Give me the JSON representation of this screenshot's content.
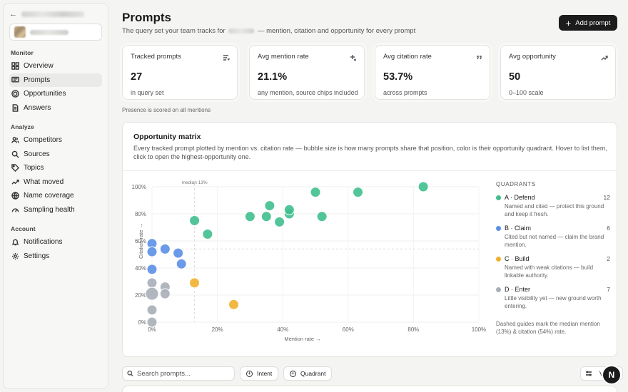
{
  "sidebar": {
    "sections": [
      {
        "title": "Monitor",
        "items": [
          {
            "label": "Overview",
            "icon": "grid-icon",
            "active": false
          },
          {
            "label": "Prompts",
            "icon": "message-icon",
            "active": true
          },
          {
            "label": "Opportunities",
            "icon": "target-icon",
            "active": false
          },
          {
            "label": "Answers",
            "icon": "document-icon",
            "active": false
          }
        ]
      },
      {
        "title": "Analyze",
        "items": [
          {
            "label": "Competitors",
            "icon": "users-icon",
            "active": false
          },
          {
            "label": "Sources",
            "icon": "search-icon",
            "active": false
          },
          {
            "label": "Topics",
            "icon": "tag-icon",
            "active": false
          },
          {
            "label": "What moved",
            "icon": "trend-icon",
            "active": false
          },
          {
            "label": "Name coverage",
            "icon": "globe-icon",
            "active": false
          },
          {
            "label": "Sampling health",
            "icon": "gauge-icon",
            "active": false
          }
        ]
      },
      {
        "title": "Account",
        "items": [
          {
            "label": "Notifications",
            "icon": "bell-icon",
            "active": false
          },
          {
            "label": "Settings",
            "icon": "gear-icon",
            "active": false
          }
        ]
      }
    ]
  },
  "header": {
    "title": "Prompts",
    "subtitle_before": "The query set your team tracks for",
    "subtitle_after": "— mention, citation and opportunity for every prompt",
    "add_label": "Add prompt"
  },
  "stats": [
    {
      "label": "Tracked prompts",
      "value": "27",
      "note": "in query set",
      "icon": "list-icon"
    },
    {
      "label": "Avg mention rate",
      "value": "21.1%",
      "note": "any mention, source chips included",
      "icon": "sparkle-icon"
    },
    {
      "label": "Avg citation rate",
      "value": "53.7%",
      "note": "across prompts",
      "icon": "quote-icon"
    },
    {
      "label": "Avg opportunity",
      "value": "50",
      "note": "0–100 scale",
      "icon": "trend-up-icon"
    }
  ],
  "presence_note": "Presence is scored on all mentions",
  "matrix": {
    "title": "Opportunity matrix",
    "description": "Every tracked prompt plotted by mention vs. citation rate — bubble size is how many prompts share that position, color is their opportunity quadrant. Hover to list them, click to open the highest-opportunity one.",
    "quadrants_title": "QUADRANTS",
    "quadrants": [
      {
        "name": "A · Defend",
        "count": "12",
        "desc": "Named and cited — protect this ground and keep it fresh.",
        "color": "#3fbf8e"
      },
      {
        "name": "B · Claim",
        "count": "6",
        "desc": "Cited but not named — claim the brand mention.",
        "color": "#5b8fe6"
      },
      {
        "name": "C · Build",
        "count": "2",
        "desc": "Named with weak citations — build linkable authority.",
        "color": "#f0b12e"
      },
      {
        "name": "D · Enter",
        "count": "7",
        "desc": "Little visibility yet — new ground worth entering.",
        "color": "#a9aeb8"
      }
    ],
    "footnote": "Dashed guides mark the median mention (13%) & citation (54%) rate."
  },
  "chart_data": {
    "type": "scatter",
    "xlabel": "Mention rate →",
    "ylabel": "Citation rate →",
    "xlim": [
      0,
      100
    ],
    "ylim": [
      0,
      100
    ],
    "x_ticks": [
      "0%",
      "20%",
      "40%",
      "60%",
      "80%",
      "100%"
    ],
    "y_ticks": [
      "0%",
      "20%",
      "40%",
      "60%",
      "80%",
      "100%"
    ],
    "median_x": 13,
    "median_y": 54,
    "median_label": "median 13%",
    "series": [
      {
        "name": "A · Defend",
        "color": "#3fbf8e",
        "points": [
          {
            "x": 13,
            "y": 75,
            "n": 1
          },
          {
            "x": 17,
            "y": 65,
            "n": 1
          },
          {
            "x": 30,
            "y": 78,
            "n": 1
          },
          {
            "x": 35,
            "y": 78,
            "n": 1
          },
          {
            "x": 36,
            "y": 86,
            "n": 1
          },
          {
            "x": 39,
            "y": 74,
            "n": 1
          },
          {
            "x": 42,
            "y": 80,
            "n": 1
          },
          {
            "x": 42,
            "y": 83,
            "n": 1
          },
          {
            "x": 50,
            "y": 96,
            "n": 1
          },
          {
            "x": 52,
            "y": 78,
            "n": 1
          },
          {
            "x": 63,
            "y": 96,
            "n": 1
          },
          {
            "x": 83,
            "y": 100,
            "n": 1
          }
        ]
      },
      {
        "name": "B · Claim",
        "color": "#5b8fe6",
        "points": [
          {
            "x": 0,
            "y": 58,
            "n": 1
          },
          {
            "x": 4,
            "y": 54,
            "n": 1
          },
          {
            "x": 8,
            "y": 51,
            "n": 1
          },
          {
            "x": 0,
            "y": 52,
            "n": 1
          },
          {
            "x": 9,
            "y": 43,
            "n": 1
          },
          {
            "x": 0,
            "y": 39,
            "n": 1
          }
        ]
      },
      {
        "name": "C · Build",
        "color": "#f0b12e",
        "points": [
          {
            "x": 13,
            "y": 29,
            "n": 1
          },
          {
            "x": 25,
            "y": 13,
            "n": 1
          }
        ]
      },
      {
        "name": "D · Enter",
        "color": "#a9aeb8",
        "points": [
          {
            "x": 0,
            "y": 29,
            "n": 1
          },
          {
            "x": 4,
            "y": 26,
            "n": 1
          },
          {
            "x": 0,
            "y": 21,
            "n": 2
          },
          {
            "x": 4,
            "y": 21,
            "n": 1
          },
          {
            "x": 0,
            "y": 9,
            "n": 1
          },
          {
            "x": 0,
            "y": 0,
            "n": 1
          }
        ]
      }
    ]
  },
  "toolbar": {
    "search_placeholder": "Search prompts...",
    "intent_label": "Intent",
    "quadrant_label": "Quadrant",
    "view_label": "V"
  },
  "assistant_badge": "N"
}
